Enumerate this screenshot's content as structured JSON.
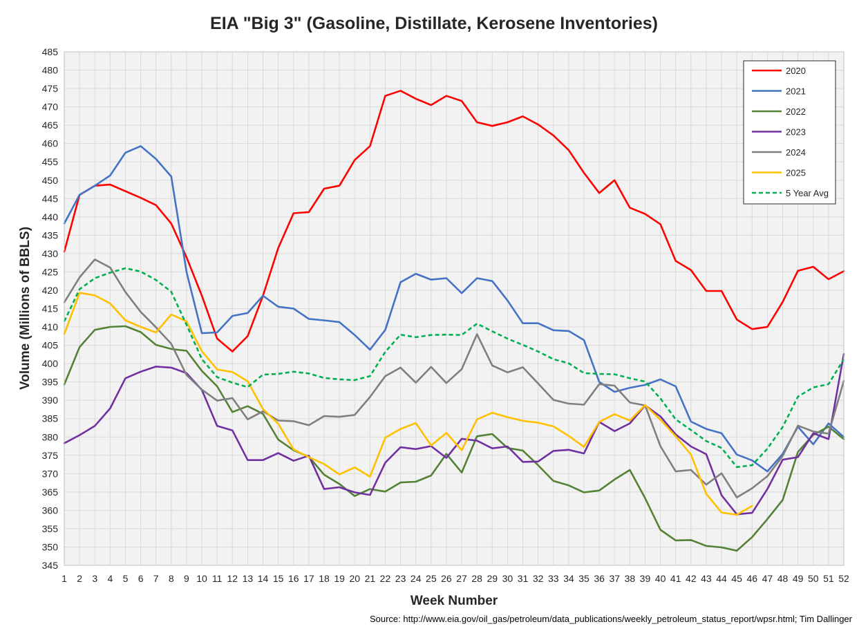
{
  "chart_data": {
    "type": "line",
    "title": "EIA \"Big 3\" (Gasoline, Distillate, Kerosene Inventories)",
    "xlabel": "Week Number",
    "ylabel": "Volume (Millions of BBLS)",
    "source": "Source: http://www.eia.gov/oil_gas/petroleum/data_publications/weekly_petroleum_status_report/wpsr.html; Tim Dallinger",
    "ylim": [
      345,
      485
    ],
    "ytick_step": 5,
    "xlim": [
      1,
      52
    ],
    "grid": true,
    "legend_position": "top-right",
    "series": [
      {
        "name": "2020",
        "color": "#ff0000",
        "dash": false,
        "values": [
          430.5,
          446,
          448.5,
          448.8,
          447,
          445.2,
          443.2,
          438.2,
          429,
          418.5,
          406.8,
          403.3,
          407.5,
          418.5,
          431.5,
          441,
          441.3,
          447.7,
          448.5,
          455.5,
          459.3,
          473,
          474.4,
          472.2,
          470.5,
          473,
          471.6,
          465.8,
          464.8,
          465.8,
          467.4,
          465.2,
          462.2,
          458.2,
          452,
          446.5,
          450,
          442.5,
          440.8,
          438,
          428,
          425.5,
          419.8,
          419.8,
          412,
          409.4,
          410,
          416.8,
          425.3,
          426.4,
          423,
          425.2
        ]
      },
      {
        "name": "2021",
        "color": "#4472c4",
        "dash": false,
        "values": [
          438.2,
          446,
          448.5,
          451.3,
          457.5,
          459.3,
          455.8,
          451,
          425,
          408.3,
          408.5,
          413,
          413.8,
          418.5,
          415.5,
          415,
          412.2,
          411.8,
          411.3,
          407.8,
          403.8,
          409.2,
          422.2,
          424.5,
          422.9,
          423.3,
          419.2,
          423.3,
          422.5,
          417.2,
          411,
          411,
          409.1,
          408.9,
          406.4,
          395,
          392.3,
          393.4,
          394.2,
          395.7,
          393.8,
          384.2,
          382.2,
          381,
          375.2,
          373.6,
          370.6,
          375.4,
          382.8,
          378,
          383.7,
          380
        ]
      },
      {
        "name": "2022",
        "color": "#548235",
        "dash": false,
        "values": [
          394.3,
          404.5,
          409.2,
          410,
          410.2,
          408.6,
          405.1,
          404,
          403.5,
          398,
          393.8,
          386.8,
          388.4,
          386.3,
          379.3,
          376.4,
          374.6,
          369.7,
          367.2,
          363.9,
          365.8,
          365.1,
          367.6,
          367.8,
          369.5,
          375.4,
          370.3,
          380.2,
          380.8,
          377,
          376.3,
          372.3,
          368,
          366.8,
          364.9,
          365.4,
          368.4,
          371,
          363.3,
          354.7,
          351.8,
          351.9,
          350.3,
          349.9,
          349,
          352.7,
          357.6,
          362.8,
          375.9,
          380.6,
          382.8,
          379.4
        ]
      },
      {
        "name": "2023",
        "color": "#7030a0",
        "dash": false,
        "values": [
          378.3,
          380.5,
          383,
          387.8,
          396,
          397.8,
          399.2,
          398.9,
          397.4,
          392.8,
          383,
          381.8,
          373.7,
          373.7,
          375.6,
          373.5,
          374.9,
          365.8,
          366.3,
          364.9,
          364.2,
          373,
          377.2,
          376.7,
          377.5,
          374.3,
          379.5,
          379,
          376.9,
          377.4,
          373.2,
          373.3,
          376.2,
          376.5,
          375.5,
          384.1,
          381.6,
          383.7,
          388.6,
          385.6,
          380.7,
          377.4,
          375.3,
          364.1,
          358.9,
          359.3,
          365.8,
          373.8,
          374.5,
          381,
          379.4,
          402.6
        ]
      },
      {
        "name": "2024",
        "color": "#7f7f7f",
        "dash": false,
        "values": [
          416.7,
          423.5,
          428.4,
          426.2,
          419.5,
          414.1,
          409.9,
          405.4,
          396.9,
          392.9,
          389.9,
          390.6,
          384.8,
          387,
          384.5,
          384.3,
          383.2,
          385.7,
          385.5,
          386,
          390.9,
          396.6,
          398.9,
          394.8,
          399.1,
          394.7,
          398.5,
          408,
          399.5,
          397.6,
          399,
          394.6,
          390.1,
          389.1,
          388.8,
          394.4,
          394,
          389.4,
          388.6,
          377.5,
          370.6,
          371,
          367,
          370.1,
          363.5,
          366,
          369.3,
          374.8,
          383.1,
          381.5,
          380.9,
          395.3
        ]
      },
      {
        "name": "2025",
        "color": "#ffc000",
        "dash": false,
        "values": [
          408,
          419.3,
          418.6,
          416.4,
          411.8,
          410,
          408.5,
          413.4,
          411.5,
          403.4,
          398.4,
          397.7,
          395.2,
          387.6,
          383.6,
          376.6,
          374.5,
          372.6,
          369.8,
          371.7,
          369.2,
          379.8,
          382.2,
          383.8,
          377.7,
          381.1,
          376.4,
          384.8,
          386.6,
          385.4,
          384.4,
          383.9,
          382.9,
          380.3,
          377.3,
          384.1,
          386.2,
          384.5,
          388.7,
          384.7,
          380.2,
          375.2,
          364.5,
          359.4,
          358.8,
          361.2
        ]
      },
      {
        "name": "5 Year Avg",
        "color": "#00b050",
        "dash": true,
        "values": [
          411.5,
          420.3,
          423.3,
          424.8,
          426,
          425.1,
          422.8,
          419.6,
          410.6,
          401.2,
          396.3,
          394.8,
          393.6,
          397,
          397.2,
          397.8,
          397.3,
          396.1,
          395.7,
          395.5,
          396.6,
          403.2,
          407.9,
          407.2,
          407.8,
          407.9,
          407.8,
          410.9,
          408.8,
          406.8,
          405.1,
          403.3,
          401.2,
          400.1,
          397.4,
          397.2,
          397.1,
          396,
          395.1,
          390.5,
          384.8,
          381.9,
          378.9,
          377,
          371.8,
          372.3,
          376.8,
          382.7,
          391,
          393.5,
          394.4,
          401.2
        ]
      }
    ]
  }
}
